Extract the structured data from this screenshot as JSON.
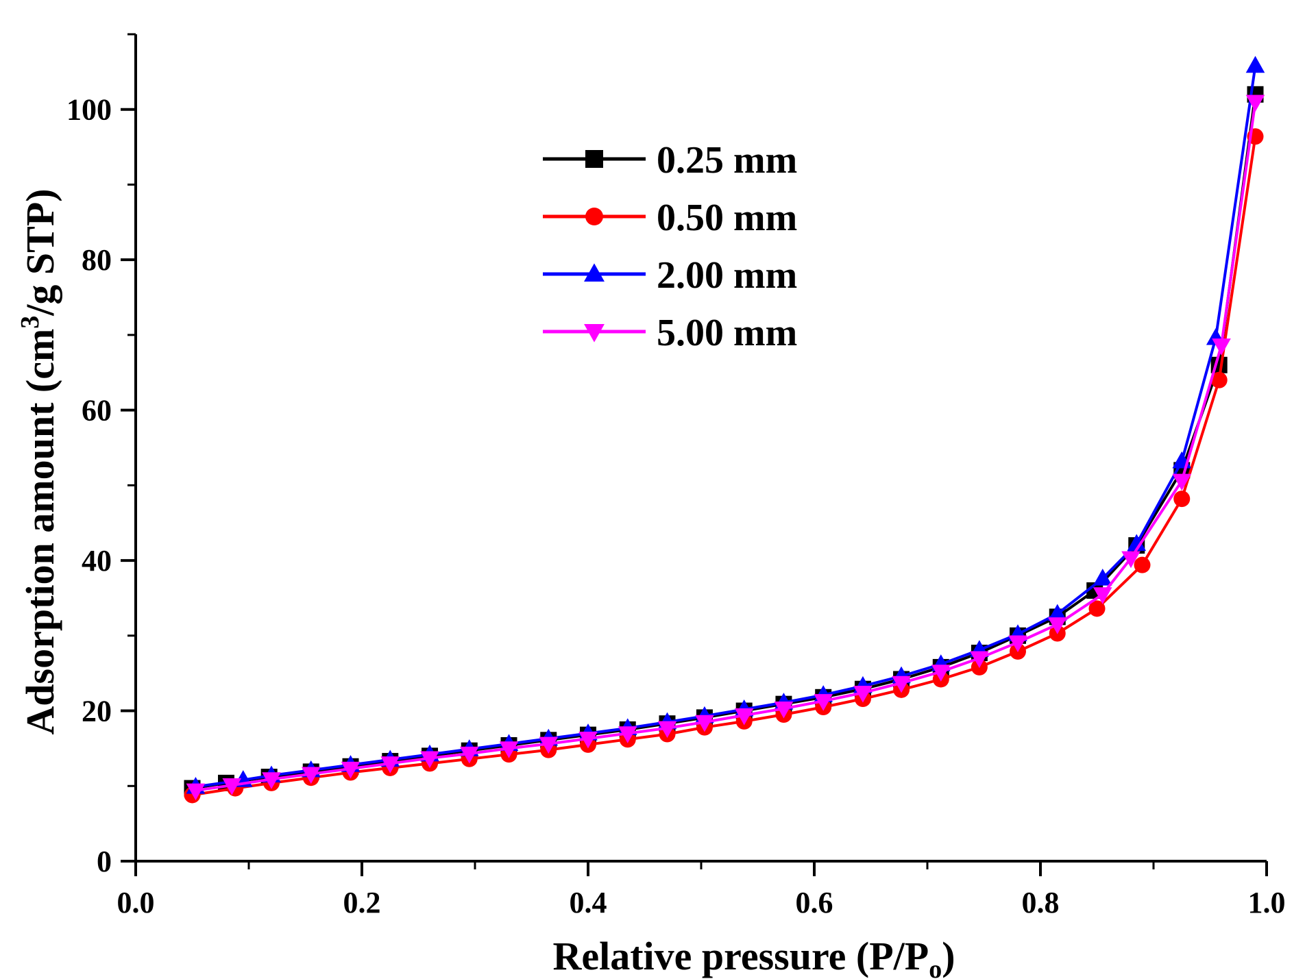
{
  "chart_data": {
    "type": "line",
    "xlabel": "Relative pressure (P/P",
    "xlabel_sub": "o",
    "xlabel_end": ")",
    "ylabel": "Adsorption amount (cm",
    "ylabel_sup": "3",
    "ylabel_end": "/g STP)",
    "xlim": [
      0.0,
      1.0
    ],
    "ylim": [
      0,
      110
    ],
    "x_ticks": [
      0.0,
      0.2,
      0.4,
      0.6,
      0.8,
      1.0
    ],
    "x_tick_labels": [
      "0.0",
      "0.2",
      "0.4",
      "0.6",
      "0.8",
      "1.0"
    ],
    "y_ticks": [
      0,
      20,
      40,
      60,
      80,
      100
    ],
    "y_tick_labels": [
      "0",
      "20",
      "40",
      "60",
      "80",
      "100"
    ],
    "legend_position": "top-center",
    "series": [
      {
        "name": "0.25 mm",
        "color": "#000000",
        "marker": "square",
        "x": [
          0.05,
          0.08,
          0.118,
          0.155,
          0.19,
          0.225,
          0.26,
          0.295,
          0.33,
          0.365,
          0.4,
          0.435,
          0.47,
          0.503,
          0.538,
          0.573,
          0.608,
          0.643,
          0.677,
          0.712,
          0.746,
          0.78,
          0.815,
          0.848,
          0.885,
          0.925,
          0.958,
          0.99
        ],
        "y": [
          9.7,
          10.4,
          11.2,
          11.9,
          12.6,
          13.3,
          14.0,
          14.7,
          15.4,
          16.1,
          16.8,
          17.5,
          18.3,
          19.1,
          20.0,
          20.9,
          21.8,
          22.9,
          24.2,
          25.8,
          27.7,
          30.0,
          32.5,
          36.0,
          42.0,
          52.0,
          66.0,
          102.0
        ]
      },
      {
        "name": "0.50 mm",
        "color": "#ff0000",
        "marker": "circle",
        "x": [
          0.05,
          0.088,
          0.12,
          0.155,
          0.19,
          0.225,
          0.26,
          0.295,
          0.33,
          0.365,
          0.4,
          0.435,
          0.47,
          0.503,
          0.538,
          0.573,
          0.608,
          0.643,
          0.677,
          0.712,
          0.746,
          0.78,
          0.815,
          0.85,
          0.89,
          0.925,
          0.958,
          0.99
        ],
        "y": [
          8.8,
          9.7,
          10.4,
          11.1,
          11.8,
          12.4,
          13.0,
          13.6,
          14.2,
          14.8,
          15.5,
          16.2,
          16.9,
          17.8,
          18.6,
          19.5,
          20.5,
          21.6,
          22.8,
          24.2,
          25.8,
          27.9,
          30.3,
          33.6,
          39.4,
          48.2,
          64.0,
          96.4
        ]
      },
      {
        "name": "2.00 mm",
        "color": "#0000ff",
        "marker": "triangle-up",
        "x": [
          0.053,
          0.095,
          0.12,
          0.155,
          0.19,
          0.225,
          0.26,
          0.295,
          0.33,
          0.365,
          0.4,
          0.435,
          0.47,
          0.503,
          0.538,
          0.573,
          0.608,
          0.643,
          0.677,
          0.712,
          0.746,
          0.78,
          0.815,
          0.855,
          0.885,
          0.925,
          0.955,
          0.99
        ],
        "y": [
          9.9,
          10.8,
          11.4,
          12.1,
          12.8,
          13.5,
          14.2,
          14.9,
          15.6,
          16.3,
          17.0,
          17.7,
          18.5,
          19.3,
          20.2,
          21.1,
          22.1,
          23.3,
          24.6,
          26.2,
          28.1,
          30.2,
          32.9,
          37.6,
          42.2,
          53.2,
          69.6,
          105.8
        ]
      },
      {
        "name": "5.00 mm",
        "color": "#ff00ff",
        "marker": "triangle-down",
        "x": [
          0.053,
          0.085,
          0.12,
          0.155,
          0.19,
          0.225,
          0.26,
          0.295,
          0.33,
          0.365,
          0.4,
          0.435,
          0.47,
          0.503,
          0.538,
          0.573,
          0.608,
          0.643,
          0.677,
          0.712,
          0.746,
          0.78,
          0.815,
          0.855,
          0.88,
          0.925,
          0.96,
          0.99
        ],
        "y": [
          9.4,
          10.1,
          10.9,
          11.6,
          12.3,
          13.0,
          13.7,
          14.3,
          15.0,
          15.6,
          16.3,
          17.0,
          17.7,
          18.5,
          19.4,
          20.3,
          21.3,
          22.4,
          23.7,
          25.2,
          27.0,
          29.1,
          31.5,
          35.5,
          40.3,
          50.6,
          68.6,
          101.0
        ]
      }
    ]
  }
}
